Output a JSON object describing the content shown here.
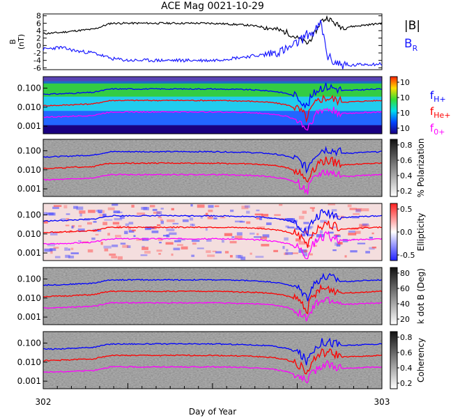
{
  "title": "ACE Mag 0021-10-29",
  "colors": {
    "bmag": "#000000",
    "br": "#1a1aff",
    "fH": "#0000ff",
    "fHe": "#ff0000",
    "fO": "#ff00ff"
  },
  "chart_data": [
    {
      "type": "line",
      "panel": "magnetic-field",
      "ylabel": "B (nT)",
      "ylim": [
        -6.5,
        8.5
      ],
      "yticks": [
        "8",
        "6",
        "4",
        "2",
        "0",
        "-2",
        "-4",
        "-6"
      ],
      "xlim": [
        302,
        303
      ],
      "series": [
        {
          "name": "|B|",
          "x": [
            302.0,
            302.05,
            302.1,
            302.15,
            302.2,
            302.25,
            302.3,
            302.4,
            302.5,
            302.6,
            302.65,
            302.68,
            302.7,
            302.72,
            302.74,
            302.76,
            302.78,
            302.8,
            302.82,
            302.84,
            302.86,
            302.88,
            302.9,
            302.95,
            303.0
          ],
          "values": [
            3.2,
            3.5,
            4.0,
            4.4,
            6.0,
            6.0,
            6.0,
            6.0,
            6.0,
            5.5,
            5.0,
            4.5,
            4.0,
            3.5,
            2.5,
            1.5,
            0.5,
            3.0,
            6.5,
            7.5,
            6.0,
            5.0,
            5.0,
            5.5,
            6.0
          ]
        },
        {
          "name": "B_R",
          "x": [
            302.0,
            302.05,
            302.1,
            302.15,
            302.2,
            302.25,
            302.3,
            302.4,
            302.5,
            302.6,
            302.65,
            302.68,
            302.7,
            302.72,
            302.74,
            302.76,
            302.78,
            302.8,
            302.82,
            302.84,
            302.86,
            302.88,
            302.9,
            302.95,
            303.0
          ],
          "values": [
            -1.0,
            -0.5,
            -1.5,
            -2.0,
            -3.5,
            -4.0,
            -4.0,
            -4.0,
            -4.0,
            -3.0,
            -2.5,
            -2.0,
            -1.5,
            -1.0,
            0.0,
            1.5,
            3.0,
            3.5,
            6.0,
            -3.0,
            -4.5,
            -5.0,
            -5.5,
            -5.0,
            -5.0
          ]
        }
      ]
    },
    {
      "type": "heatmap",
      "panel": "power",
      "ylabel": "",
      "yticks": [
        "0.100",
        "0.010",
        "0.001"
      ],
      "colorbar": {
        "ticks": [
          "10",
          "10",
          "10",
          "10"
        ],
        "label": ""
      },
      "lines": [
        "fH+",
        "fHe+",
        "f0+"
      ]
    },
    {
      "type": "heatmap",
      "panel": "polarization",
      "yticks": [
        "0.100",
        "0.010",
        "0.001"
      ],
      "colorbar": {
        "ticks": [
          "0.8",
          "0.6",
          "0.4",
          "0.2"
        ],
        "label": "% Polarization"
      }
    },
    {
      "type": "heatmap",
      "panel": "ellipticity",
      "yticks": [
        "0.100",
        "0.010",
        "0.001"
      ],
      "colorbar": {
        "ticks": [
          "0.5",
          "0.0",
          "-0.5"
        ],
        "label": "Ellipticity"
      }
    },
    {
      "type": "heatmap",
      "panel": "k-dot-b",
      "yticks": [
        "0.100",
        "0.010",
        "0.001"
      ],
      "colorbar": {
        "ticks": [
          "80",
          "60",
          "40",
          "20"
        ],
        "label": "k dot B (Deg)"
      }
    },
    {
      "type": "heatmap",
      "panel": "coherency",
      "yticks": [
        "0.100",
        "0.010",
        "0.001"
      ],
      "colorbar": {
        "ticks": [
          "0.8",
          "0.6",
          "0.4",
          "0.2"
        ],
        "label": "Coherency"
      }
    }
  ],
  "gyro_frequencies": {
    "x": [
      302.0,
      302.05,
      302.1,
      302.15,
      302.2,
      302.25,
      302.3,
      302.4,
      302.5,
      302.6,
      302.65,
      302.68,
      302.7,
      302.72,
      302.74,
      302.76,
      302.78,
      302.8,
      302.82,
      302.84,
      302.86,
      302.88,
      302.9,
      302.95,
      303.0
    ],
    "fH": [
      0.048,
      0.05,
      0.055,
      0.06,
      0.09,
      0.09,
      0.09,
      0.09,
      0.09,
      0.083,
      0.075,
      0.068,
      0.06,
      0.052,
      0.038,
      0.022,
      0.008,
      0.045,
      0.1,
      0.11,
      0.09,
      0.075,
      0.075,
      0.083,
      0.09
    ],
    "fHe": [
      0.012,
      0.0125,
      0.0138,
      0.015,
      0.0225,
      0.0225,
      0.0225,
      0.0225,
      0.0225,
      0.0208,
      0.0188,
      0.017,
      0.015,
      0.013,
      0.0095,
      0.0055,
      0.002,
      0.0112,
      0.025,
      0.0275,
      0.0225,
      0.0188,
      0.0188,
      0.0208,
      0.0225
    ],
    "fO": [
      0.003,
      0.0031,
      0.0034,
      0.0037,
      0.0056,
      0.0056,
      0.0056,
      0.0056,
      0.0056,
      0.0052,
      0.0047,
      0.0042,
      0.0037,
      0.0032,
      0.0024,
      0.0014,
      0.0005,
      0.0028,
      0.0062,
      0.0069,
      0.0056,
      0.0047,
      0.0047,
      0.0052,
      0.0056
    ]
  },
  "legend": {
    "bmag": "|B|",
    "br": "B",
    "br_sub": "R",
    "fH": "f",
    "fH_sub": "H+",
    "fHe": "f",
    "fHe_sub": "He+",
    "fO": "f",
    "fO_sub": "0+"
  },
  "x_axis": {
    "label": "Day of Year",
    "start": "302",
    "end": "303"
  }
}
